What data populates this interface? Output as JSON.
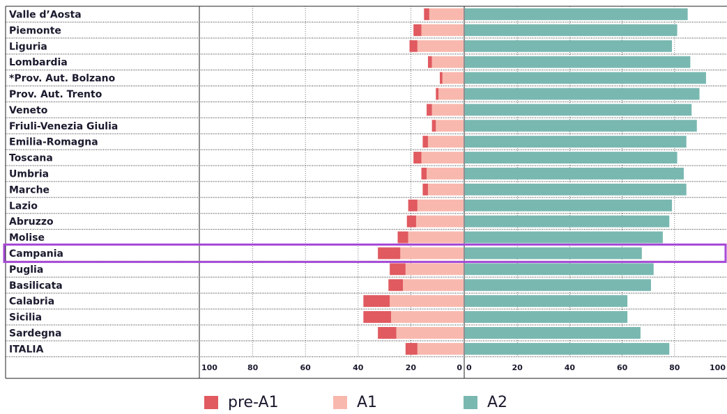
{
  "colors": {
    "pre_a1": "#e05a60",
    "a1": "#f9b8ae",
    "a2": "#79b8b0",
    "highlight": "#a64ad6",
    "text": "#1a1a2e"
  },
  "legend": [
    {
      "name": "pre-A1",
      "color": "#e05a60"
    },
    {
      "name": "A1",
      "color": "#f9b8ae"
    },
    {
      "name": "A2",
      "color": "#79b8b0"
    }
  ],
  "chart_data": {
    "type": "bar",
    "orientation": "horizontal-diverging",
    "categories": [
      "Valle d’Aosta",
      "Piemonte",
      "Liguria",
      "Lombardia",
      "*Prov. Aut. Bolzano",
      "Prov. Aut. Trento",
      "Veneto",
      "Friuli-Venezia Giulia",
      "Emilia-Romagna",
      "Toscana",
      "Umbria",
      "Marche",
      "Lazio",
      "Abruzzo",
      "Molise",
      "Campania",
      "Puglia",
      "Basilicata",
      "Calabria",
      "Sicilia",
      "Sardegna",
      "ITALIA"
    ],
    "series": [
      {
        "name": "pre-A1",
        "side": "left",
        "values": [
          2,
          3,
          3,
          1.5,
          1,
          1,
          2,
          1.5,
          2,
          3,
          2,
          2,
          3.5,
          3.5,
          4,
          8.5,
          6,
          5.5,
          10,
          10.5,
          7,
          4.5
        ]
      },
      {
        "name": "A1",
        "side": "left",
        "values": [
          13,
          16,
          17.5,
          12,
          8,
          9.5,
          12,
          10.5,
          13.5,
          16,
          14,
          13.5,
          17.5,
          18,
          21,
          24,
          22,
          23,
          28,
          27.5,
          25.5,
          17.5
        ]
      },
      {
        "name": "A2",
        "side": "right",
        "values": [
          85,
          81,
          79,
          86,
          92,
          89.5,
          86.5,
          88.5,
          84.5,
          81,
          83.5,
          84.5,
          79,
          78,
          75.5,
          67.5,
          72,
          71,
          62,
          62,
          67,
          78
        ]
      }
    ],
    "left_axis_ticks": [
      "100",
      "80",
      "60",
      "40",
      "20",
      "0"
    ],
    "right_axis_ticks": [
      "0",
      "20",
      "40",
      "60",
      "80",
      "100"
    ],
    "left_xlim": [
      100,
      0
    ],
    "right_xlim": [
      0,
      100
    ],
    "highlighted_category": "Campania",
    "grid": true,
    "legend_position": "bottom"
  }
}
